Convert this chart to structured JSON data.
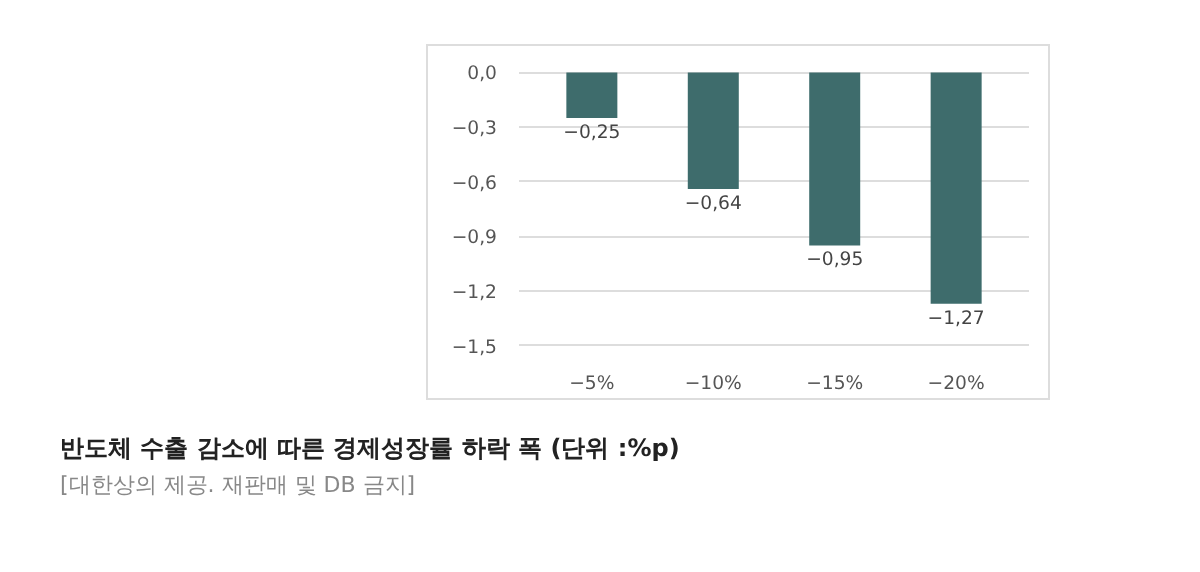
{
  "chart_data": {
    "type": "bar",
    "title": "반도체 수출 감소에 따른 경제성장률 하락 폭 (단위 :%p)",
    "annotations": [
      "[대한상의 제공. 재판매 및 DB 금지]"
    ],
    "categories": [
      "−5%",
      "−10%",
      "−15%",
      "−20%"
    ],
    "values": [
      -0.25,
      -0.64,
      -0.95,
      -1.27
    ],
    "color": "#3e6c6c",
    "value_labels": [
      "−0,25",
      "−0,64",
      "−0,95",
      "−1,27"
    ],
    "ylim": [
      -1.5,
      0.0
    ],
    "yticks": [
      {
        "value": 0.0,
        "label": "0,0"
      },
      {
        "value": -0.3,
        "label": "−0,3"
      },
      {
        "value": -0.6,
        "label": "−0,6"
      },
      {
        "value": -0.9,
        "label": "−0,9"
      },
      {
        "value": -1.2,
        "label": "−1,2"
      },
      {
        "value": -1.5,
        "label": "−1,5"
      }
    ],
    "grid": "y"
  }
}
